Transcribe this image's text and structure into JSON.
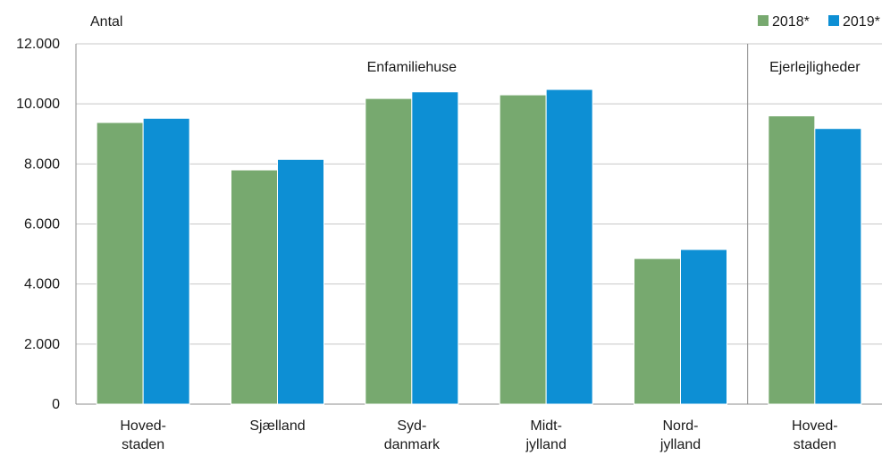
{
  "chart_data": {
    "type": "bar",
    "ylabel": "Antal",
    "ylim": [
      0,
      12000
    ],
    "yticks": [
      0,
      2000,
      4000,
      6000,
      8000,
      10000,
      12000
    ],
    "ytick_labels": [
      "0",
      "2.000",
      "4.000",
      "6.000",
      "8.000",
      "10.000",
      "12.000"
    ],
    "grid": true,
    "legend_position": "top-right",
    "categories": [
      [
        "Hoved-",
        "staden"
      ],
      [
        "Sjælland"
      ],
      [
        "Syd-",
        "danmark"
      ],
      [
        "Midt-",
        "jylland"
      ],
      [
        "Nord-",
        "jylland"
      ],
      [
        "Hoved-",
        "staden"
      ]
    ],
    "groups": [
      {
        "label": "Enfamiliehuse",
        "categories": [
          0,
          1,
          2,
          3,
          4
        ]
      },
      {
        "label": "Ejerlejligheder",
        "categories": [
          5
        ]
      }
    ],
    "series": [
      {
        "name": "2018*",
        "color": "#77a96f",
        "values": [
          9380,
          7800,
          10180,
          10300,
          4850,
          9600
        ]
      },
      {
        "name": "2019*",
        "color": "#0d8fd4",
        "values": [
          9520,
          8150,
          10400,
          10480,
          5150,
          9180
        ]
      }
    ]
  }
}
